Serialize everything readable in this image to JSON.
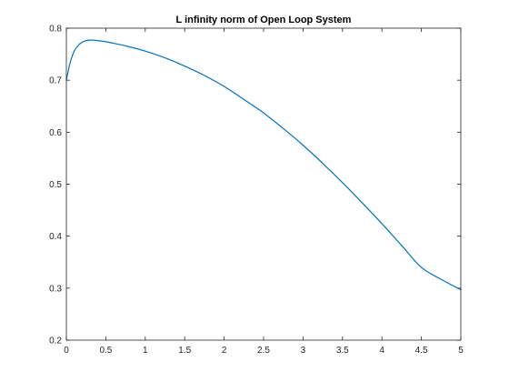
{
  "chart_data": {
    "type": "line",
    "title": "L infinity norm of Open Loop System",
    "xlabel": "",
    "ylabel": "",
    "xlim": [
      0,
      5
    ],
    "ylim": [
      0.2,
      0.8
    ],
    "x_ticks": [
      0,
      0.5,
      1,
      1.5,
      2,
      2.5,
      3,
      3.5,
      4,
      4.5,
      5
    ],
    "x_tick_labels": [
      "0",
      "0.5",
      "1",
      "1.5",
      "2",
      "2.5",
      "3",
      "3.5",
      "4",
      "4.5",
      "5"
    ],
    "y_ticks": [
      0.2,
      0.3,
      0.4,
      0.5,
      0.6,
      0.7,
      0.8
    ],
    "y_tick_labels": [
      "0.2",
      "0.3",
      "0.4",
      "0.5",
      "0.6",
      "0.7",
      "0.8"
    ],
    "grid": false,
    "legend": "none",
    "series": [
      {
        "color": "#0072bd",
        "x": [
          0,
          0.02,
          0.05,
          0.1,
          0.15,
          0.2,
          0.25,
          0.3,
          0.35,
          0.4,
          0.5,
          0.6,
          0.75,
          1.0,
          1.25,
          1.5,
          1.75,
          2.0,
          2.25,
          2.5,
          2.75,
          3.0,
          3.25,
          3.5,
          3.75,
          4.0,
          4.25,
          4.5,
          4.75,
          5.0
        ],
        "y": [
          0.7,
          0.715,
          0.735,
          0.756,
          0.767,
          0.773,
          0.776,
          0.777,
          0.777,
          0.776,
          0.774,
          0.771,
          0.766,
          0.756,
          0.743,
          0.727,
          0.709,
          0.688,
          0.663,
          0.637,
          0.607,
          0.575,
          0.54,
          0.503,
          0.464,
          0.424,
          0.382,
          0.34,
          0.317,
          0.297
        ]
      }
    ]
  }
}
